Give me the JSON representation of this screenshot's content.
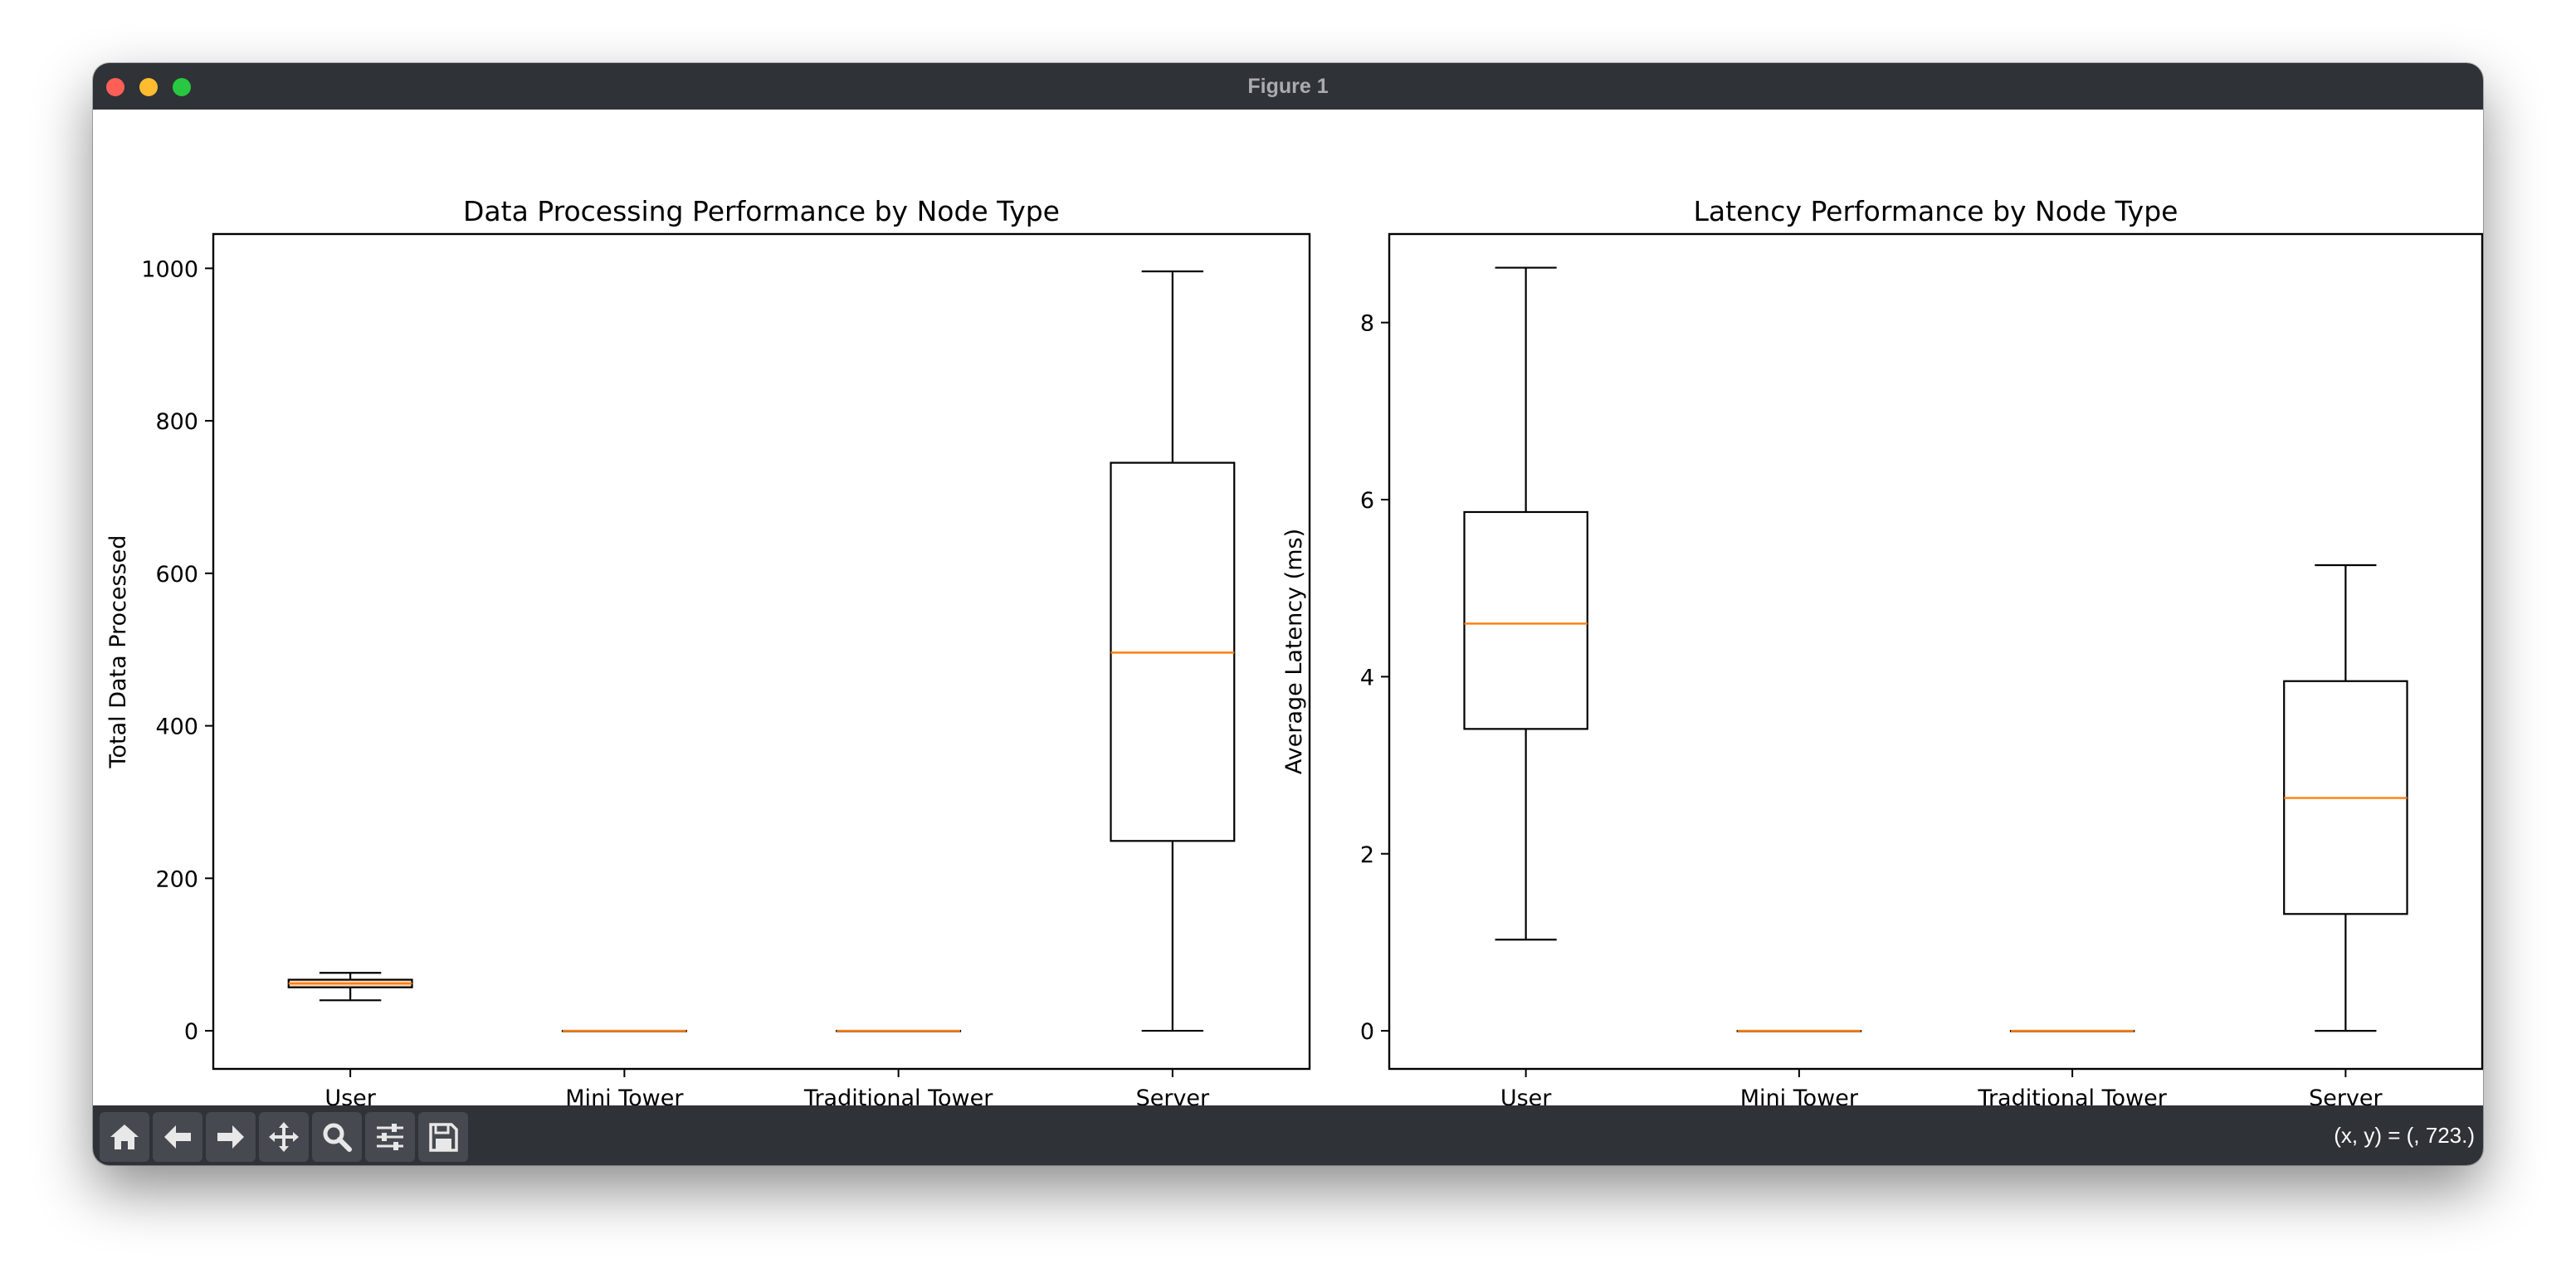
{
  "window": {
    "title": "Figure 1",
    "traffic_lights": {
      "close": "#ff5f57",
      "minimize": "#febc2e",
      "zoom": "#28c840"
    }
  },
  "toolbar": {
    "buttons": [
      {
        "name": "home-button",
        "icon": "home-icon"
      },
      {
        "name": "back-button",
        "icon": "arrow-left-icon"
      },
      {
        "name": "forward-button",
        "icon": "arrow-right-icon"
      },
      {
        "name": "pan-button",
        "icon": "move-icon"
      },
      {
        "name": "zoom-button",
        "icon": "magnifier-icon"
      },
      {
        "name": "configure-subplots-button",
        "icon": "sliders-icon"
      },
      {
        "name": "save-button",
        "icon": "floppy-disk-icon"
      }
    ],
    "coords_text": "(x, y) = (, 723.)"
  },
  "colors": {
    "median": "#ff7f0e",
    "box_edge": "#000000"
  },
  "chart_data": [
    {
      "type": "boxplot",
      "title": "Data Processing Performance by Node Type",
      "xlabel": "",
      "ylabel": "Total Data Processed",
      "categories": [
        "User",
        "Mini Tower",
        "Traditional Tower",
        "Server"
      ],
      "ylim": [
        -50,
        1045
      ],
      "yticks": [
        0,
        200,
        400,
        600,
        800,
        1000
      ],
      "grid": false,
      "boxes": [
        {
          "whislo": 40,
          "q1": 57,
          "med": 62,
          "q3": 67,
          "whishi": 76,
          "box_color": "#ffd5b3"
        },
        {
          "whislo": 0,
          "q1": 0,
          "med": 0,
          "q3": 0,
          "whishi": 0
        },
        {
          "whislo": 0,
          "q1": 0,
          "med": 0,
          "q3": 0,
          "whishi": 0
        },
        {
          "whislo": 0,
          "q1": 249,
          "med": 496,
          "q3": 745,
          "whishi": 996
        }
      ]
    },
    {
      "type": "boxplot",
      "title": "Latency Performance by Node Type",
      "xlabel": "",
      "ylabel": "Average Latency (ms)",
      "categories": [
        "User",
        "Mini Tower",
        "Traditional Tower",
        "Server"
      ],
      "ylim": [
        -0.43,
        9.0
      ],
      "yticks": [
        0,
        2,
        4,
        6,
        8
      ],
      "grid": false,
      "boxes": [
        {
          "whislo": 1.03,
          "q1": 3.41,
          "med": 4.6,
          "q3": 5.86,
          "whishi": 8.62
        },
        {
          "whislo": 0,
          "q1": 0,
          "med": 0,
          "q3": 0,
          "whishi": 0
        },
        {
          "whislo": 0,
          "q1": 0,
          "med": 0,
          "q3": 0,
          "whishi": 0
        },
        {
          "whislo": 0,
          "q1": 1.32,
          "med": 2.63,
          "q3": 3.95,
          "whishi": 5.26
        }
      ]
    }
  ]
}
